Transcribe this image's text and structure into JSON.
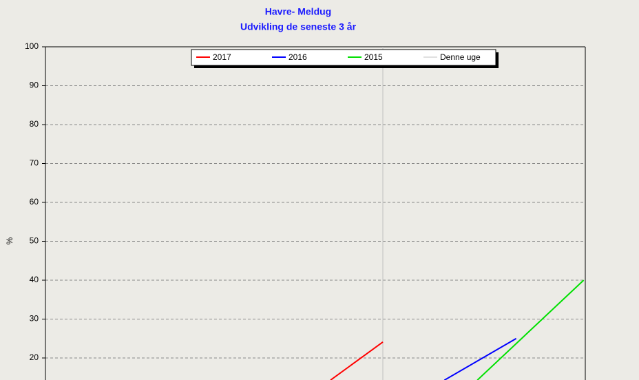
{
  "chart_data": {
    "type": "line",
    "title": "Havre- Meldug",
    "subtitle": "Udvikling de seneste 3 år",
    "ylabel": "%",
    "xlim": [
      0,
      100
    ],
    "ylim": [
      0,
      100
    ],
    "yticks": [
      20,
      30,
      40,
      50,
      60,
      70,
      80,
      90,
      100
    ],
    "grid": true,
    "series": [
      {
        "name": "2017",
        "color": "#ff0000",
        "x": [
          52.8,
          62.5
        ],
        "values": [
          14.3,
          24.1
        ]
      },
      {
        "name": "2016",
        "color": "#0000ff",
        "x": [
          73.9,
          87.2
        ],
        "values": [
          14.3,
          25
        ]
      },
      {
        "name": "2015",
        "color": "#00e000",
        "x": [
          80,
          99.7
        ],
        "values": [
          14.3,
          40
        ]
      }
    ],
    "current_week": {
      "name": "Denne uge",
      "color": "#c0c0c0",
      "x": 62.5
    }
  }
}
